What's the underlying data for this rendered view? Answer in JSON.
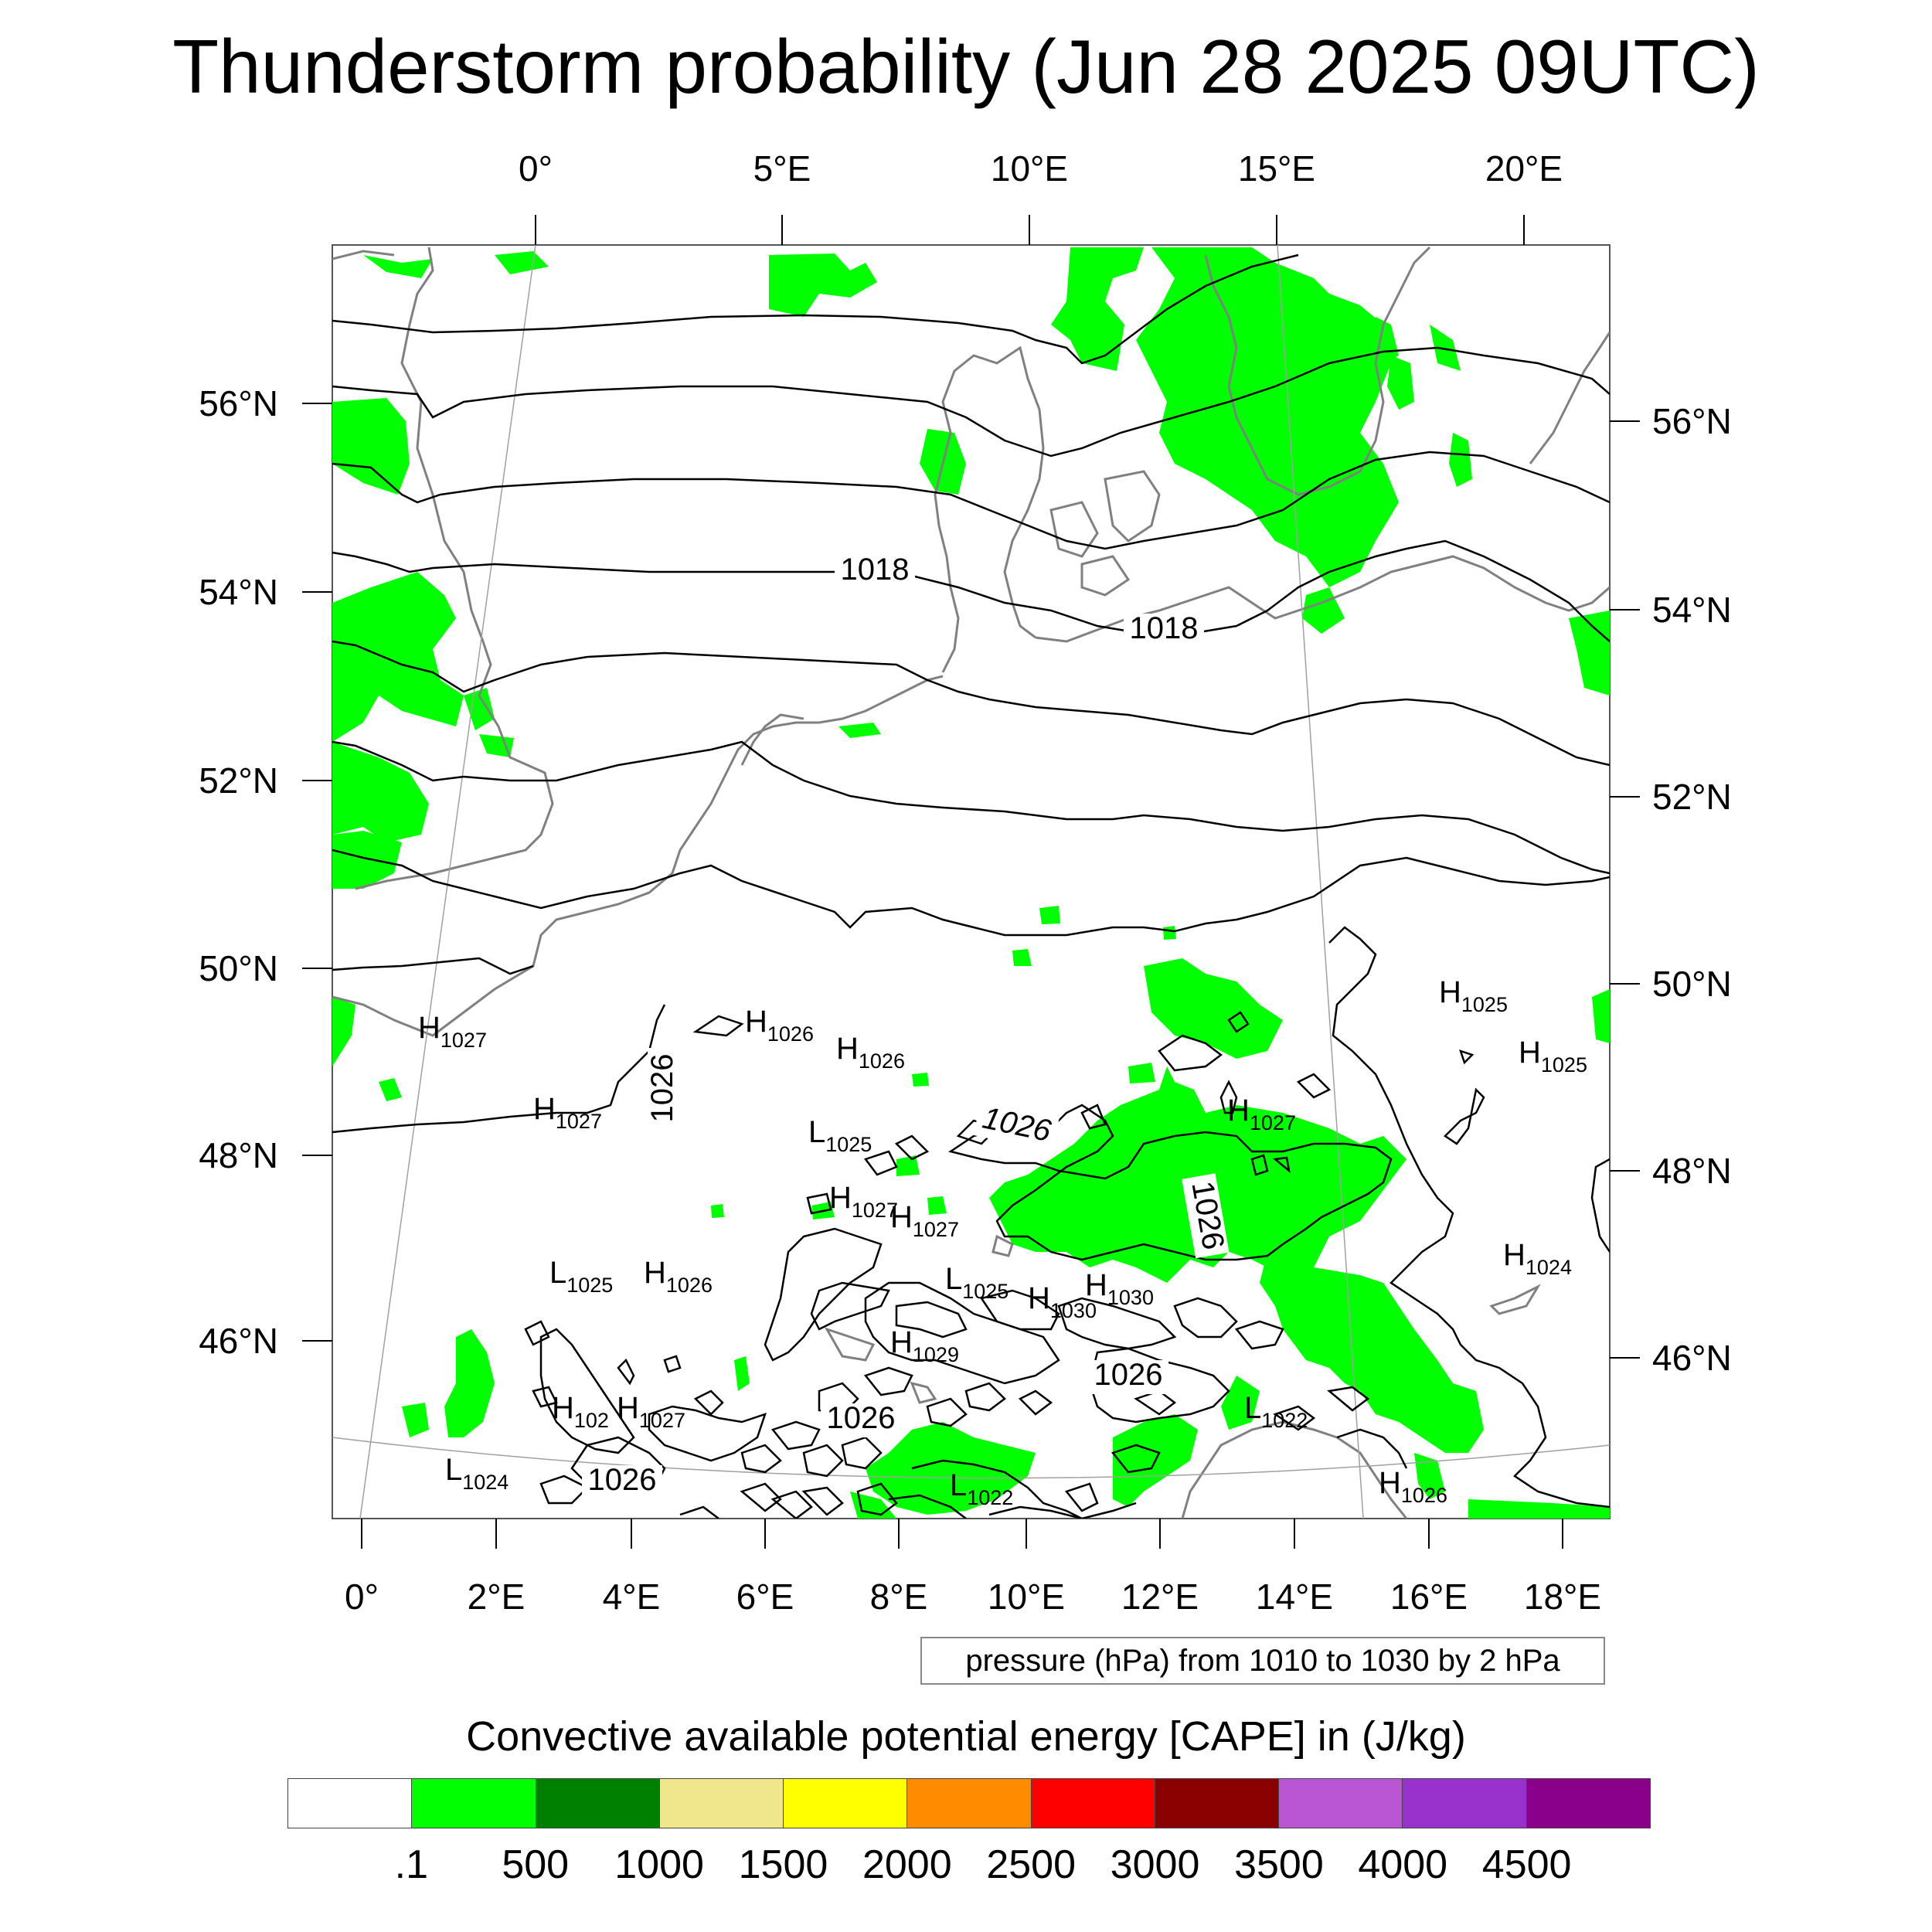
{
  "title": "Thunderstorm probability (Jun 28 2025 09UTC)",
  "top_lon_labels": [
    "0°",
    "5°E",
    "10°E",
    "15°E",
    "20°E"
  ],
  "bottom_lon_labels": [
    "0°",
    "2°E",
    "4°E",
    "6°E",
    "8°E",
    "10°E",
    "12°E",
    "14°E",
    "16°E",
    "18°E"
  ],
  "left_lat_labels": [
    "56°N",
    "54°N",
    "52°N",
    "50°N",
    "48°N",
    "46°N"
  ],
  "right_lat_labels": [
    "56°N",
    "54°N",
    "52°N",
    "50°N",
    "48°N",
    "46°N"
  ],
  "isobar_labels": [
    {
      "text": "1018",
      "rot": 0
    },
    {
      "text": "1018",
      "rot": 0
    },
    {
      "text": "1026",
      "rot": -90
    },
    {
      "text": "1026",
      "rot": 12
    },
    {
      "text": "1026",
      "rot": 80
    },
    {
      "text": "1026",
      "rot": 0
    },
    {
      "text": "1026",
      "rot": 0
    },
    {
      "text": "1026",
      "rot": 0
    }
  ],
  "pressure_centers": [
    {
      "type": "H",
      "value": "1027"
    },
    {
      "type": "H",
      "value": "1027"
    },
    {
      "type": "H",
      "value": "1026"
    },
    {
      "type": "H",
      "value": "1026"
    },
    {
      "type": "L",
      "value": "1025"
    },
    {
      "type": "H",
      "value": "1027"
    },
    {
      "type": "H",
      "value": "1027"
    },
    {
      "type": "H",
      "value": "1027"
    },
    {
      "type": "L",
      "value": "1025"
    },
    {
      "type": "H",
      "value": "1026"
    },
    {
      "type": "L",
      "value": "1025"
    },
    {
      "type": "H",
      "value": "1030"
    },
    {
      "type": "H",
      "value": "1030"
    },
    {
      "type": "H",
      "value": "1029"
    },
    {
      "type": "H",
      "value": "102"
    },
    {
      "type": "H",
      "value": "1027"
    },
    {
      "type": "L",
      "value": "1024"
    },
    {
      "type": "L",
      "value": "1022"
    },
    {
      "type": "L",
      "value": "1022"
    },
    {
      "type": "H",
      "value": "1025"
    },
    {
      "type": "H",
      "value": "1025"
    },
    {
      "type": "H",
      "value": "1024"
    },
    {
      "type": "H",
      "value": "1026"
    }
  ],
  "pressure_note": "pressure (hPa) from 1010 to 1030 by 2 hPa",
  "colorbar": {
    "title": "Convective available potential energy [CAPE] in (J/kg)",
    "colors": [
      "#ffffff",
      "#00ff00",
      "#008000",
      "#f0e68c",
      "#ffff00",
      "#ff8c00",
      "#ff0000",
      "#8b0000",
      "#ba55d3",
      "#9932cc",
      "#8b008b"
    ],
    "labels": [
      ".1",
      "500",
      "1000",
      "1500",
      "2000",
      "2500",
      "3000",
      "3500",
      "4000",
      "4500"
    ]
  },
  "colors": {
    "cape_green": "#00ff00",
    "coast": "#808080",
    "isobar": "#000000",
    "grid": "#a0a0a0"
  }
}
